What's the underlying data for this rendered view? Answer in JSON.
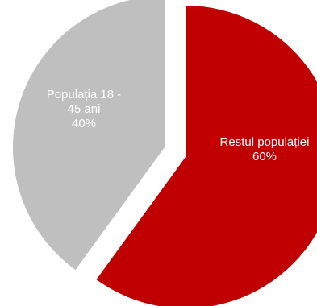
{
  "chart_data": {
    "type": "pie",
    "title": "",
    "categories": [
      "Restul populației",
      "Populația 18 - 45 ani"
    ],
    "values": [
      60,
      40
    ],
    "value_labels": [
      "60%",
      "40%"
    ],
    "colors": [
      "#c00000",
      "#bfbfbf"
    ],
    "label_color": "#ffffff",
    "exploded": true,
    "legend": "none",
    "label_lines": [
      [
        "Restul populației",
        "60%"
      ],
      [
        "Populația 18 -",
        "45 ani",
        "40%"
      ]
    ]
  }
}
